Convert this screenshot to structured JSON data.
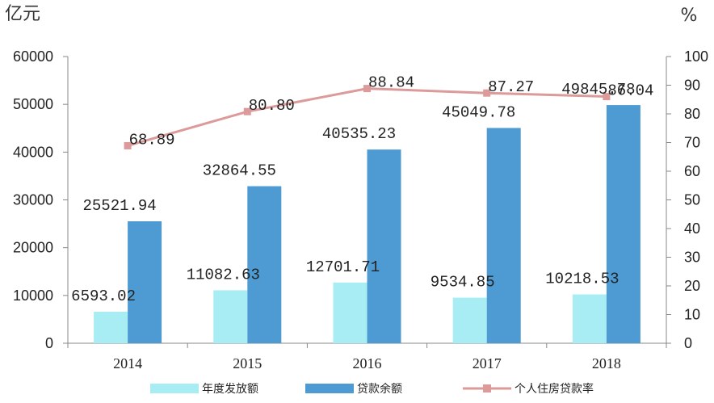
{
  "chart_data": {
    "type": "bar",
    "categories": [
      "2014",
      "2015",
      "2016",
      "2017",
      "2018"
    ],
    "y_left_unit": "亿元",
    "y_right_unit": "%",
    "ylim_left": [
      0,
      60000
    ],
    "ylim_right": [
      0,
      100
    ],
    "yticks_left": [
      "0",
      "10000",
      "20000",
      "30000",
      "40000",
      "50000",
      "60000"
    ],
    "yticks_right": [
      "0",
      "10",
      "20",
      "30",
      "40",
      "50",
      "60",
      "70",
      "80",
      "90",
      "100"
    ],
    "grid": false,
    "legend_position": "bottom",
    "series": [
      {
        "name": "年度发放额",
        "kind": "bar",
        "axis": "left",
        "color": "#a8ecf4",
        "values": [
          6593.02,
          11082.63,
          12701.71,
          9534.85,
          10218.53
        ],
        "labels": [
          "6593.02",
          "11082.63",
          "12701.71",
          "9534.85",
          "10218.53"
        ]
      },
      {
        "name": "贷款余额",
        "kind": "bar",
        "axis": "left",
        "color": "#4e9bd4",
        "values": [
          25521.94,
          32864.55,
          40535.23,
          45049.78,
          49845.78
        ],
        "labels": [
          "25521.94",
          "32864.55",
          "40535.23",
          "45049.78",
          "49845.78"
        ]
      },
      {
        "name": "个人住房贷款率",
        "kind": "line",
        "axis": "right",
        "color": "#dc9a9a",
        "values": [
          68.89,
          80.8,
          88.84,
          87.27,
          86.04
        ],
        "labels": [
          "68.89",
          "80.80",
          "88.84",
          "87.27",
          "86.04"
        ]
      }
    ]
  }
}
